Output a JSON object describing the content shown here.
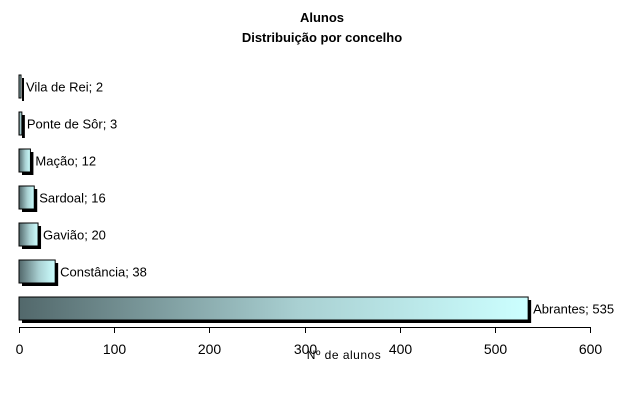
{
  "chart_data": {
    "type": "bar",
    "orientation": "horizontal",
    "title": "Alunos",
    "subtitle": "Distribuição por concelho",
    "xlabel": "Nº de alunos",
    "ylabel": "",
    "xlim": [
      0,
      600
    ],
    "x_ticks": [
      0,
      100,
      200,
      300,
      400,
      500,
      600
    ],
    "grid": false,
    "legend": "none",
    "categories": [
      "Vila de Rei",
      "Ponte de Sôr",
      "Mação",
      "Sardoal",
      "Gavião",
      "Constância",
      "Abrantes"
    ],
    "values": [
      2,
      3,
      12,
      16,
      20,
      38,
      535
    ],
    "data_labels": [
      "Vila de Rei; 2",
      "Ponte de Sôr; 3",
      "Mação; 12",
      "Sardoal; 16",
      "Gavião; 20",
      "Constância; 38",
      "Abrantes; 535"
    ],
    "colors": {
      "bar_dark": "#52686b",
      "bar_mid": "#a9d0d2",
      "bar_light": "#ccffff",
      "shadow": "#000000",
      "axis": "#000000"
    }
  }
}
